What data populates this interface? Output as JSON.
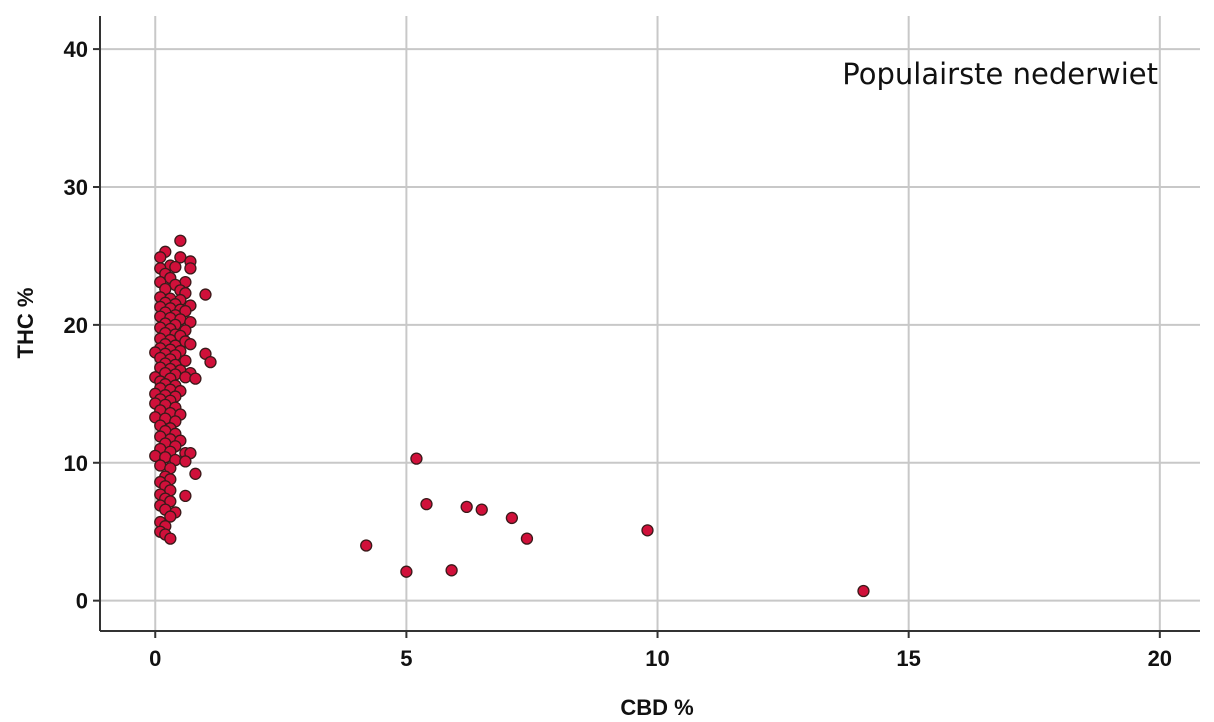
{
  "chart_data": {
    "type": "scatter",
    "title": "",
    "annotation": "Populairste nederwiet",
    "xlabel": "CBD %",
    "ylabel": "THC %",
    "xlim": [
      -1.1,
      20.8
    ],
    "ylim": [
      -2.2,
      42.4
    ],
    "xticks": [
      0,
      5,
      10,
      15,
      20
    ],
    "yticks": [
      0,
      10,
      20,
      30,
      40
    ],
    "grid": true,
    "point_color": "#d0103a",
    "series": [
      {
        "points": [
          [
            0.5,
            26.1
          ],
          [
            0.2,
            25.3
          ],
          [
            0.1,
            24.9
          ],
          [
            0.5,
            24.9
          ],
          [
            0.7,
            24.6
          ],
          [
            0.3,
            24.3
          ],
          [
            0.1,
            24.1
          ],
          [
            0.4,
            24.2
          ],
          [
            0.7,
            24.1
          ],
          [
            0.2,
            23.7
          ],
          [
            0.3,
            23.4
          ],
          [
            0.1,
            23.1
          ],
          [
            0.6,
            23.1
          ],
          [
            0.4,
            22.9
          ],
          [
            0.2,
            22.6
          ],
          [
            0.5,
            22.5
          ],
          [
            0.6,
            22.3
          ],
          [
            1.0,
            22.2
          ],
          [
            0.1,
            22.0
          ],
          [
            0.3,
            21.9
          ],
          [
            0.5,
            21.8
          ],
          [
            0.2,
            21.6
          ],
          [
            0.4,
            21.5
          ],
          [
            0.7,
            21.4
          ],
          [
            0.1,
            21.3
          ],
          [
            0.3,
            21.2
          ],
          [
            0.5,
            21.1
          ],
          [
            0.6,
            21.0
          ],
          [
            0.2,
            20.9
          ],
          [
            0.4,
            20.7
          ],
          [
            0.1,
            20.6
          ],
          [
            0.3,
            20.5
          ],
          [
            0.5,
            20.4
          ],
          [
            0.7,
            20.2
          ],
          [
            0.2,
            20.1
          ],
          [
            0.4,
            20.0
          ],
          [
            0.1,
            19.8
          ],
          [
            0.3,
            19.7
          ],
          [
            0.6,
            19.6
          ],
          [
            0.2,
            19.4
          ],
          [
            0.4,
            19.3
          ],
          [
            0.5,
            19.2
          ],
          [
            0.1,
            19.0
          ],
          [
            0.3,
            18.9
          ],
          [
            0.6,
            18.8
          ],
          [
            0.2,
            18.6
          ],
          [
            0.4,
            18.5
          ],
          [
            0.7,
            18.6
          ],
          [
            0.1,
            18.3
          ],
          [
            0.3,
            18.2
          ],
          [
            0.5,
            18.1
          ],
          [
            0.0,
            18.0
          ],
          [
            0.2,
            17.9
          ],
          [
            0.4,
            17.8
          ],
          [
            1.0,
            17.9
          ],
          [
            0.1,
            17.6
          ],
          [
            0.3,
            17.5
          ],
          [
            0.6,
            17.4
          ],
          [
            1.1,
            17.3
          ],
          [
            0.2,
            17.2
          ],
          [
            0.4,
            17.1
          ],
          [
            0.1,
            16.9
          ],
          [
            0.3,
            16.8
          ],
          [
            0.5,
            16.7
          ],
          [
            0.7,
            16.5
          ],
          [
            0.2,
            16.5
          ],
          [
            0.4,
            16.4
          ],
          [
            0.0,
            16.2
          ],
          [
            0.3,
            16.1
          ],
          [
            0.6,
            16.2
          ],
          [
            0.8,
            16.1
          ],
          [
            0.1,
            15.9
          ],
          [
            0.2,
            15.7
          ],
          [
            0.4,
            15.6
          ],
          [
            0.1,
            15.4
          ],
          [
            0.3,
            15.3
          ],
          [
            0.5,
            15.2
          ],
          [
            0.0,
            15.0
          ],
          [
            0.2,
            14.9
          ],
          [
            0.4,
            14.8
          ],
          [
            0.1,
            14.6
          ],
          [
            0.3,
            14.5
          ],
          [
            0.0,
            14.3
          ],
          [
            0.2,
            14.2
          ],
          [
            0.4,
            14.0
          ],
          [
            0.1,
            13.8
          ],
          [
            0.3,
            13.6
          ],
          [
            0.5,
            13.5
          ],
          [
            0.0,
            13.3
          ],
          [
            0.2,
            13.2
          ],
          [
            0.4,
            13.0
          ],
          [
            0.1,
            12.7
          ],
          [
            0.3,
            12.5
          ],
          [
            0.2,
            12.3
          ],
          [
            0.4,
            12.1
          ],
          [
            0.1,
            11.9
          ],
          [
            0.3,
            11.7
          ],
          [
            0.5,
            11.6
          ],
          [
            0.2,
            11.4
          ],
          [
            0.4,
            11.2
          ],
          [
            0.1,
            11.0
          ],
          [
            0.3,
            10.8
          ],
          [
            0.6,
            10.7
          ],
          [
            0.7,
            10.7
          ],
          [
            0.0,
            10.5
          ],
          [
            0.2,
            10.4
          ],
          [
            0.4,
            10.2
          ],
          [
            0.6,
            10.1
          ],
          [
            0.1,
            9.8
          ],
          [
            0.3,
            9.6
          ],
          [
            0.8,
            9.2
          ],
          [
            0.2,
            9.0
          ],
          [
            0.3,
            8.8
          ],
          [
            0.1,
            8.6
          ],
          [
            0.2,
            8.3
          ],
          [
            0.3,
            8.0
          ],
          [
            0.1,
            7.7
          ],
          [
            0.6,
            7.6
          ],
          [
            0.2,
            7.4
          ],
          [
            0.3,
            7.2
          ],
          [
            0.1,
            6.9
          ],
          [
            0.2,
            6.6
          ],
          [
            0.4,
            6.4
          ],
          [
            0.3,
            6.1
          ],
          [
            0.1,
            5.7
          ],
          [
            0.2,
            5.4
          ],
          [
            0.1,
            5.0
          ],
          [
            0.2,
            4.8
          ],
          [
            0.3,
            4.5
          ],
          [
            4.2,
            4.0
          ],
          [
            5.0,
            2.1
          ],
          [
            5.2,
            10.3
          ],
          [
            5.4,
            7.0
          ],
          [
            5.9,
            2.2
          ],
          [
            6.2,
            6.8
          ],
          [
            6.5,
            6.6
          ],
          [
            7.1,
            6.0
          ],
          [
            7.4,
            4.5
          ],
          [
            9.8,
            5.1
          ],
          [
            14.1,
            0.7
          ]
        ]
      }
    ]
  }
}
